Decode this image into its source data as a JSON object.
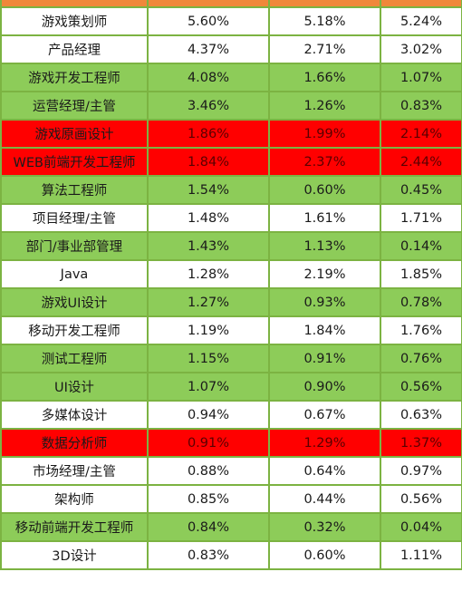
{
  "table": {
    "rows": [
      {
        "name": "游戏策划师",
        "v1": "5.60%",
        "v2": "5.18%",
        "v3": "5.24%",
        "style": "white"
      },
      {
        "name": "产品经理",
        "v1": "4.37%",
        "v2": "2.71%",
        "v3": "3.02%",
        "style": "white"
      },
      {
        "name": "游戏开发工程师",
        "v1": "4.08%",
        "v2": "1.66%",
        "v3": "1.07%",
        "style": "green"
      },
      {
        "name": "运营经理/主管",
        "v1": "3.46%",
        "v2": "1.26%",
        "v3": "0.83%",
        "style": "green"
      },
      {
        "name": "游戏原画设计",
        "v1": "1.86%",
        "v2": "1.99%",
        "v3": "2.14%",
        "style": "red"
      },
      {
        "name": "WEB前端开发工程师",
        "v1": "1.84%",
        "v2": "2.37%",
        "v3": "2.44%",
        "style": "red"
      },
      {
        "name": "算法工程师",
        "v1": "1.54%",
        "v2": "0.60%",
        "v3": "0.45%",
        "style": "green"
      },
      {
        "name": "项目经理/主管",
        "v1": "1.48%",
        "v2": "1.61%",
        "v3": "1.71%",
        "style": "white"
      },
      {
        "name": "部门/事业部管理",
        "v1": "1.43%",
        "v2": "1.13%",
        "v3": "0.14%",
        "style": "green"
      },
      {
        "name": "Java",
        "v1": "1.28%",
        "v2": "2.19%",
        "v3": "1.85%",
        "style": "white"
      },
      {
        "name": "游戏UI设计",
        "v1": "1.27%",
        "v2": "0.93%",
        "v3": "0.78%",
        "style": "green"
      },
      {
        "name": "移动开发工程师",
        "v1": "1.19%",
        "v2": "1.84%",
        "v3": "1.76%",
        "style": "white"
      },
      {
        "name": "测试工程师",
        "v1": "1.15%",
        "v2": "0.91%",
        "v3": "0.76%",
        "style": "green"
      },
      {
        "name": "UI设计",
        "v1": "1.07%",
        "v2": "0.90%",
        "v3": "0.56%",
        "style": "green"
      },
      {
        "name": "多媒体设计",
        "v1": "0.94%",
        "v2": "0.67%",
        "v3": "0.63%",
        "style": "white"
      },
      {
        "name": "数据分析师",
        "v1": "0.91%",
        "v2": "1.29%",
        "v3": "1.37%",
        "style": "red"
      },
      {
        "name": "市场经理/主管",
        "v1": "0.88%",
        "v2": "0.64%",
        "v3": "0.97%",
        "style": "white"
      },
      {
        "name": "架构师",
        "v1": "0.85%",
        "v2": "0.44%",
        "v3": "0.56%",
        "style": "white"
      },
      {
        "name": "移动前端开发工程师",
        "v1": "0.84%",
        "v2": "0.32%",
        "v3": "0.04%",
        "style": "green"
      },
      {
        "name": "3D设计",
        "v1": "0.83%",
        "v2": "0.60%",
        "v3": "1.11%",
        "style": "white"
      }
    ]
  },
  "colors": {
    "header": "#F0883A",
    "border": "#7CB342",
    "green": "#8DCC59",
    "red": "#FF0000"
  }
}
